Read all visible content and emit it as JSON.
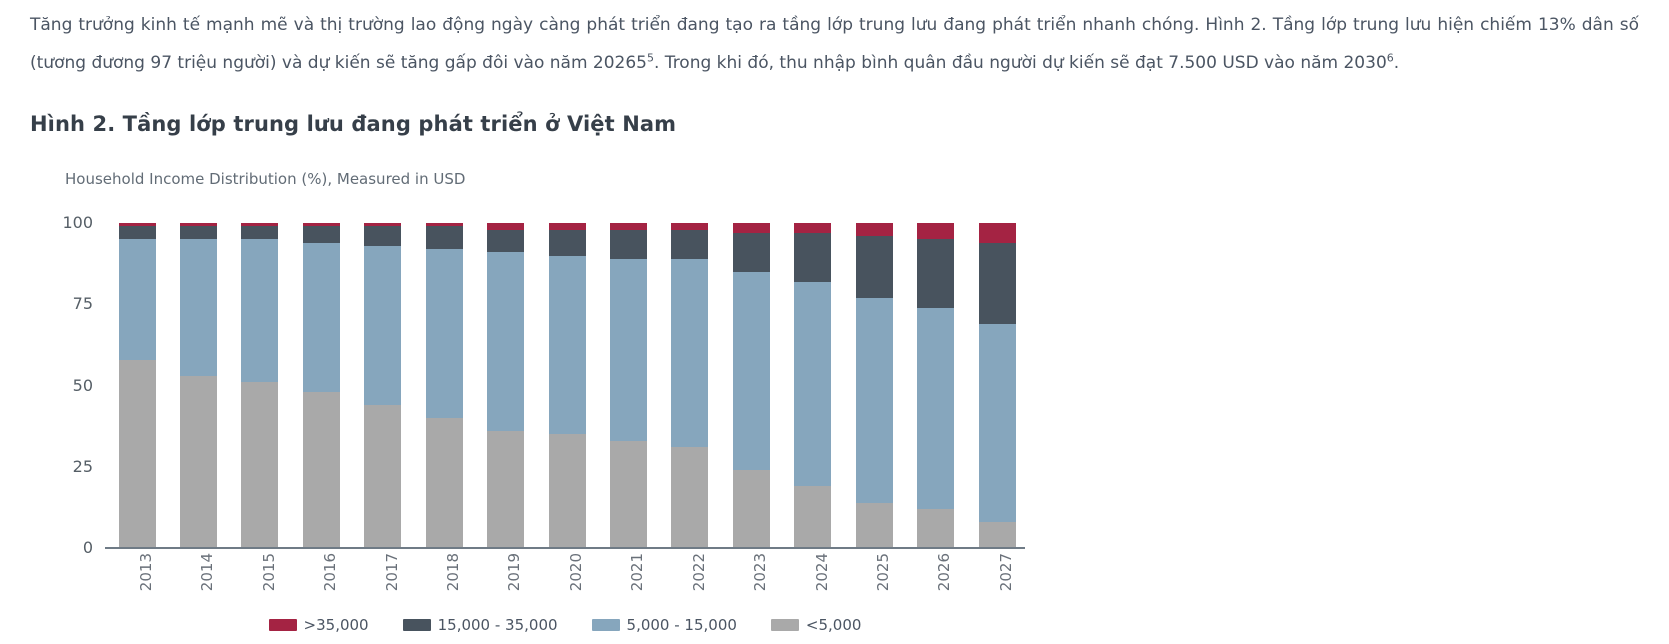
{
  "intro": {
    "part1": "Tăng trưởng kinh tế mạnh mẽ và thị trường lao động ngày càng phát triển đang tạo ra tầng lớp trung lưu đang phát triển nhanh chóng. Hình 2. Tầng lớp trung lưu hiện chiếm 13% dân số (tương đương 97 triệu người) và dự kiến sẽ tăng gấp đôi vào năm 20265",
    "footnote1": "5",
    "part2": ". Trong khi đó, thu nhập bình quân đầu người dự kiến sẽ đạt 7.500 USD vào năm 2030",
    "footnote2": "6",
    "part3": "."
  },
  "chart_data": {
    "type": "bar",
    "stacked": true,
    "title": "Hình 2. Tầng lớp trung lưu đang phát triển ở Việt Nam",
    "subtitle": "Household Income Distribution (%), Measured in USD",
    "unit": "%",
    "categories": [
      "2013",
      "2014",
      "2015",
      "2016",
      "2017",
      "2018",
      "2019",
      "2020",
      "2021",
      "2022",
      "2023",
      "2024",
      "2025",
      "2026",
      "2027"
    ],
    "series": [
      {
        "name": "<5,000",
        "color": "#a9a9a9",
        "values": [
          58,
          53,
          51,
          48,
          44,
          40,
          36,
          35,
          33,
          31,
          24,
          19,
          14,
          12,
          8
        ]
      },
      {
        "name": "5,000 - 15,000",
        "color": "#86a6bd",
        "values": [
          37,
          42,
          44,
          46,
          49,
          52,
          55,
          55,
          56,
          58,
          61,
          63,
          63,
          62,
          61
        ]
      },
      {
        "name": "15,000 - 35,000",
        "color": "#48535e",
        "values": [
          4,
          4,
          4,
          5,
          6,
          7,
          7,
          8,
          9,
          9,
          12,
          15,
          19,
          21,
          25
        ]
      },
      {
        "name": ">35,000",
        "color": "#a42343",
        "values": [
          1,
          1,
          1,
          1,
          1,
          1,
          2,
          2,
          2,
          2,
          3,
          3,
          4,
          5,
          6
        ]
      }
    ],
    "ylim": [
      0,
      100
    ],
    "yticks": [
      0,
      25,
      50,
      75,
      100
    ],
    "grid": false,
    "axis_color": "#6f7b86",
    "legend": {
      "position": "bottom-center",
      "order": [
        ">35,000",
        "15,000 - 35,000",
        "5,000 - 15,000",
        "<5,000"
      ]
    }
  }
}
